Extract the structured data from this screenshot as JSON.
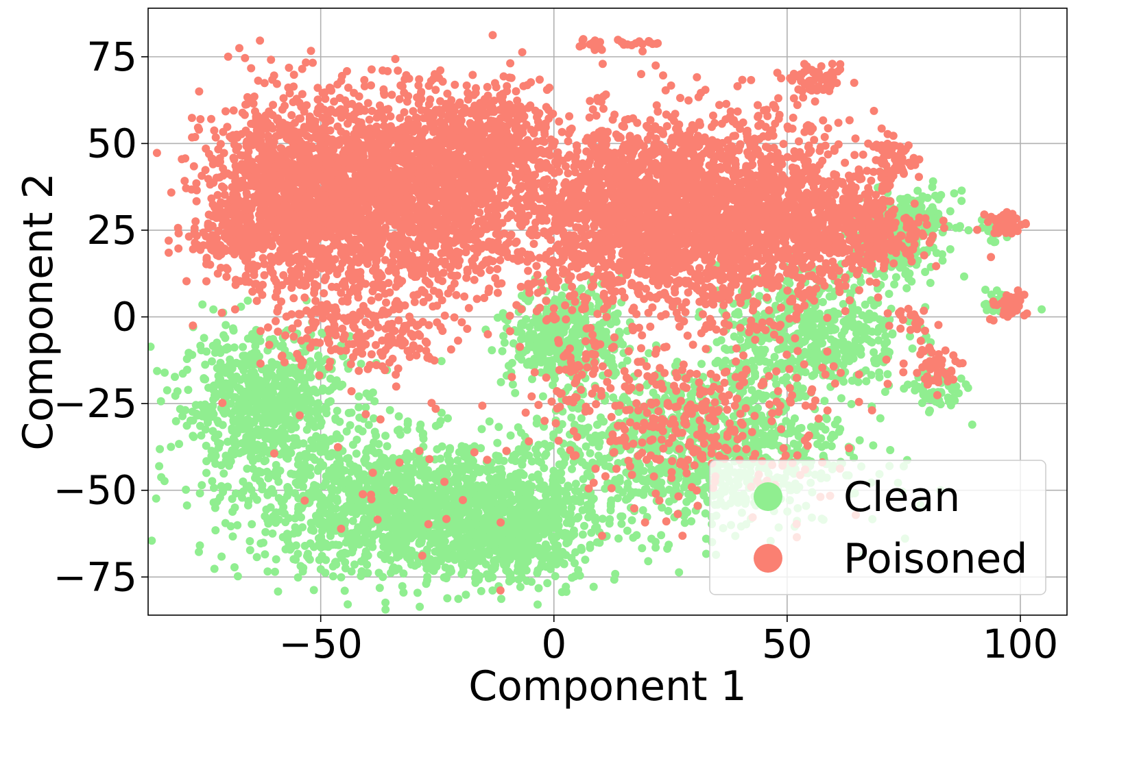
{
  "chart_data": {
    "type": "scatter",
    "title": "",
    "xlabel": "Component 1",
    "ylabel": "Component 2",
    "xlim": [
      -87,
      110
    ],
    "ylim": [
      -86,
      89
    ],
    "xticks": [
      -50,
      0,
      50,
      100
    ],
    "yticks": [
      -75,
      -50,
      -25,
      0,
      25,
      50,
      75
    ],
    "xtick_labels": [
      "−50",
      "0",
      "50",
      "100"
    ],
    "ytick_labels": [
      "−75",
      "−50",
      "−25",
      "0",
      "25",
      "50",
      "75"
    ],
    "grid": true,
    "legend_position": "bottom-right",
    "series": [
      {
        "name": "Clean",
        "color": "#90ee90",
        "clusters": [
          {
            "center": [
              -62,
              -25
            ],
            "spread": [
              9,
              10
            ],
            "count": 700
          },
          {
            "center": [
              -30,
              -55
            ],
            "spread": [
              18,
              10
            ],
            "count": 1500
          },
          {
            "center": [
              -10,
              -62
            ],
            "spread": [
              8,
              7
            ],
            "count": 500
          },
          {
            "center": [
              3,
              -5
            ],
            "spread": [
              6,
              7
            ],
            "count": 400
          },
          {
            "center": [
              30,
              -38
            ],
            "spread": [
              16,
              12
            ],
            "count": 1000
          },
          {
            "center": [
              55,
              -5
            ],
            "spread": [
              10,
              9
            ],
            "count": 500
          },
          {
            "center": [
              72,
              22
            ],
            "spread": [
              5,
              6
            ],
            "count": 200
          },
          {
            "center": [
              78,
              28
            ],
            "spread": [
              4,
              4
            ],
            "count": 120
          },
          {
            "center": [
              82,
              -22
            ],
            "spread": [
              3,
              3
            ],
            "count": 60
          },
          {
            "center": [
              95,
              25
            ],
            "spread": [
              2,
              2
            ],
            "count": 30
          },
          {
            "center": [
              96,
              4
            ],
            "spread": [
              2,
              2
            ],
            "count": 30
          }
        ]
      },
      {
        "name": "Poisoned",
        "color": "#fa8072",
        "clusters": [
          {
            "center": [
              -55,
              35
            ],
            "spread": [
              10,
              14
            ],
            "count": 1400
          },
          {
            "center": [
              -30,
              35
            ],
            "spread": [
              14,
              14
            ],
            "count": 1800
          },
          {
            "center": [
              -15,
              50
            ],
            "spread": [
              7,
              8
            ],
            "count": 400
          },
          {
            "center": [
              -70,
              22
            ],
            "spread": [
              4,
              4
            ],
            "count": 80
          },
          {
            "center": [
              15,
              30
            ],
            "spread": [
              11,
              13
            ],
            "count": 1300
          },
          {
            "center": [
              38,
              30
            ],
            "spread": [
              13,
              14
            ],
            "count": 1500
          },
          {
            "center": [
              55,
              25
            ],
            "spread": [
              8,
              8
            ],
            "count": 400
          },
          {
            "center": [
              70,
              25
            ],
            "spread": [
              5,
              5
            ],
            "count": 200
          },
          {
            "center": [
              57,
              68
            ],
            "spread": [
              3,
              2
            ],
            "count": 60
          },
          {
            "center": [
              73,
              45
            ],
            "spread": [
              3,
              3
            ],
            "count": 60
          },
          {
            "center": [
              97,
              27
            ],
            "spread": [
              2,
              2
            ],
            "count": 40
          },
          {
            "center": [
              97,
              3
            ],
            "spread": [
              2,
              2
            ],
            "count": 40
          },
          {
            "center": [
              82,
              -14
            ],
            "spread": [
              3,
              3
            ],
            "count": 50
          },
          {
            "center": [
              77,
              0
            ],
            "spread": [
              2,
              2
            ],
            "count": 20
          },
          {
            "center": [
              8,
              79
            ],
            "spread": [
              2,
              1
            ],
            "count": 15
          },
          {
            "center": [
              17,
              79
            ],
            "spread": [
              2,
              1
            ],
            "count": 15
          },
          {
            "center": [
              -40,
              -5
            ],
            "spread": [
              10,
              6
            ],
            "count": 180
          },
          {
            "center": [
              30,
              -30
            ],
            "spread": [
              15,
              12
            ],
            "count": 350
          },
          {
            "center": [
              5,
              -15
            ],
            "spread": [
              5,
              6
            ],
            "count": 60
          },
          {
            "center": [
              -35,
              -45
            ],
            "spread": [
              15,
              15
            ],
            "count": 30
          }
        ]
      }
    ]
  }
}
